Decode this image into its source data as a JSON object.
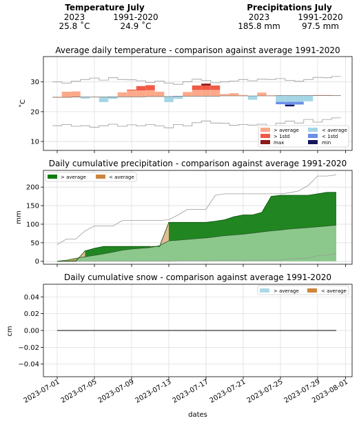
{
  "summary": {
    "temperature": {
      "title": "Temperature July",
      "year_label": "2023",
      "ref_label": "1991-2020",
      "year_value": "25.8 ˚C",
      "ref_value": "24.9 ˚C"
    },
    "precipitation": {
      "title": "Precipitations July",
      "year_label": "2023",
      "ref_label": "1991-2020",
      "year_value": "185.8 mm",
      "ref_value": "97.5 mm"
    }
  },
  "colors": {
    "above": "#fca98a",
    "above_std": "#f05a45",
    "max": "#8b1a1a",
    "below": "#a4d6e6",
    "below_std": "#6b8ee8",
    "min": "#14145c",
    "precip_above": "#0e7c0e",
    "precip_below": "#cd853f",
    "precip_fill": "#8cc88c",
    "snow_above": "#add8e6",
    "snow_below": "#cd853f",
    "envelope": "#999999",
    "grid": "#dddddd"
  },
  "xaxis": {
    "label": "dates",
    "ticks": [
      "2023-07-01",
      "2023-07-05",
      "2023-07-09",
      "2023-07-13",
      "2023-07-17",
      "2023-07-21",
      "2023-07-25",
      "2023-07-29",
      "2023-08-01"
    ]
  },
  "chart_data": [
    {
      "type": "area",
      "title": "Average daily temperature - comparison against average 1991-2020",
      "xlabel": "",
      "ylabel": "˚C",
      "ylim": [
        7,
        38.5
      ],
      "yticks": [
        "10",
        "20",
        "30"
      ],
      "grid": true,
      "legend_position": "lower-right",
      "legend": [
        "> average",
        "< average",
        "> 1std",
        "< 1std",
        "max",
        "min"
      ],
      "x": [
        "2023-07-01",
        "2023-07-02",
        "2023-07-03",
        "2023-07-04",
        "2023-07-05",
        "2023-07-06",
        "2023-07-07",
        "2023-07-08",
        "2023-07-09",
        "2023-07-10",
        "2023-07-11",
        "2023-07-12",
        "2023-07-13",
        "2023-07-14",
        "2023-07-15",
        "2023-07-16",
        "2023-07-17",
        "2023-07-18",
        "2023-07-19",
        "2023-07-20",
        "2023-07-21",
        "2023-07-22",
        "2023-07-23",
        "2023-07-24",
        "2023-07-25",
        "2023-07-26",
        "2023-07-27",
        "2023-07-28",
        "2023-07-29",
        "2023-07-30",
        "2023-07-31"
      ],
      "series": [
        {
          "name": "2023",
          "values": [
            25.0,
            26.7,
            26.8,
            24.4,
            24.9,
            23.2,
            24.3,
            26.5,
            27.4,
            28.6,
            28.9,
            26.7,
            23.2,
            24.3,
            26.6,
            28.8,
            29.4,
            28.8,
            25.9,
            26.2,
            25.6,
            24.0,
            26.4,
            25.5,
            22.5,
            21.8,
            22.4,
            23.5,
            25.6,
            25.6,
            25.4
          ]
        },
        {
          "name": "1991-2020",
          "values": [
            24.8,
            24.8,
            24.9,
            24.9,
            24.9,
            24.9,
            25.0,
            25.0,
            25.0,
            25.0,
            25.1,
            25.1,
            25.1,
            25.2,
            25.2,
            25.2,
            25.2,
            25.2,
            25.3,
            25.3,
            25.3,
            25.3,
            25.3,
            25.3,
            25.4,
            25.4,
            25.4,
            25.4,
            25.4,
            25.4,
            25.4
          ]
        },
        {
          "name": "1std upper",
          "values": [
            26.9,
            26.9,
            27.0,
            27.0,
            27.0,
            27.0,
            27.1,
            27.1,
            27.1,
            27.1,
            27.2,
            27.2,
            27.2,
            27.3,
            27.3,
            27.3,
            27.3,
            27.3,
            27.4,
            27.4,
            27.4,
            27.4,
            27.4,
            27.4,
            27.5,
            27.5,
            27.5,
            27.5,
            27.5,
            27.5,
            27.5
          ]
        },
        {
          "name": "1std lower",
          "values": [
            22.7,
            22.7,
            22.8,
            22.8,
            22.8,
            22.8,
            22.9,
            22.9,
            22.9,
            22.9,
            23.0,
            23.0,
            23.0,
            23.1,
            23.1,
            23.1,
            23.1,
            23.1,
            23.2,
            23.2,
            23.2,
            23.2,
            23.2,
            23.2,
            23.3,
            23.3,
            23.3,
            23.3,
            23.3,
            23.3,
            23.3
          ]
        },
        {
          "name": "max",
          "values": [
            30.0,
            29.6,
            30.2,
            30.8,
            31.3,
            30.6,
            31.4,
            30.8,
            30.7,
            30.4,
            29.8,
            30.3,
            29.6,
            29.2,
            30.1,
            30.9,
            30.5,
            29.7,
            30.0,
            30.3,
            30.8,
            30.4,
            30.9,
            30.8,
            31.1,
            30.5,
            30.2,
            30.8,
            31.5,
            31.4,
            31.8
          ]
        },
        {
          "name": "min",
          "values": [
            15.3,
            15.7,
            15.1,
            15.3,
            14.8,
            15.3,
            15.8,
            15.1,
            15.6,
            15.2,
            15.7,
            15.2,
            14.6,
            15.7,
            15.2,
            16.3,
            16.9,
            16.2,
            16.1,
            15.4,
            15.7,
            15.5,
            15.8,
            15.2,
            16.1,
            16.8,
            16.2,
            17.4,
            16.5,
            17.4,
            17.9
          ]
        }
      ]
    },
    {
      "type": "area",
      "title": "Daily cumulative precipitation - comparison against average 1991-2020",
      "xlabel": "",
      "ylabel": "mm",
      "ylim": [
        -8,
        245
      ],
      "yticks": [
        "0",
        "50",
        "100",
        "150",
        "200"
      ],
      "grid": true,
      "legend_position": "upper-left",
      "legend": [
        "> average",
        "< average"
      ],
      "x": [
        "2023-07-01",
        "2023-07-02",
        "2023-07-03",
        "2023-07-04",
        "2023-07-05",
        "2023-07-06",
        "2023-07-07",
        "2023-07-08",
        "2023-07-09",
        "2023-07-10",
        "2023-07-11",
        "2023-07-12",
        "2023-07-13",
        "2023-07-14",
        "2023-07-15",
        "2023-07-16",
        "2023-07-17",
        "2023-07-18",
        "2023-07-19",
        "2023-07-20",
        "2023-07-21",
        "2023-07-22",
        "2023-07-23",
        "2023-07-24",
        "2023-07-25",
        "2023-07-26",
        "2023-07-27",
        "2023-07-28",
        "2023-07-29",
        "2023-07-30",
        "2023-07-31"
      ],
      "series": [
        {
          "name": "2023",
          "values": [
            0,
            0,
            0,
            28,
            35,
            40,
            40,
            40,
            40,
            40,
            40,
            40,
            105,
            105,
            105,
            105,
            105,
            108,
            112,
            120,
            125,
            125,
            132,
            175,
            178,
            178,
            178,
            178,
            182,
            185.8,
            185.8
          ]
        },
        {
          "name": "1991-2020",
          "values": [
            0,
            3,
            8,
            12,
            16,
            20,
            25,
            30,
            33,
            35,
            37,
            42,
            55,
            57,
            59,
            61,
            63,
            66,
            69,
            71,
            73,
            76,
            79,
            82,
            84,
            87,
            89,
            91,
            93,
            95,
            97.5
          ]
        },
        {
          "name": "max",
          "values": [
            45,
            60,
            60,
            82,
            95,
            95,
            95,
            110,
            110,
            110,
            110,
            110,
            112,
            125,
            140,
            140,
            140,
            178,
            182,
            182,
            182,
            182,
            182,
            182,
            182,
            185,
            190,
            205,
            230,
            230,
            233
          ]
        },
        {
          "name": "min",
          "values": [
            0,
            0,
            0,
            0,
            0,
            0,
            0,
            0,
            0,
            0,
            0,
            0,
            0,
            1,
            1,
            1,
            1,
            2,
            2,
            2,
            2,
            2,
            3,
            3,
            3,
            7,
            7,
            9,
            15,
            17,
            20
          ]
        }
      ]
    },
    {
      "type": "area",
      "title": "Daily cumulative snow - comparison against average 1991-2020",
      "xlabel": "",
      "ylabel": "cm",
      "ylim": [
        -0.055,
        0.055
      ],
      "yticks": [
        "−0.04",
        "−0.02",
        "0.00",
        "0.02",
        "0.04"
      ],
      "grid": true,
      "legend_position": "upper-right",
      "legend": [
        "> average",
        "< average"
      ],
      "x": [
        "2023-07-01",
        "2023-07-31"
      ],
      "series": [
        {
          "name": "2023",
          "values": [
            0,
            0
          ]
        }
      ]
    }
  ]
}
